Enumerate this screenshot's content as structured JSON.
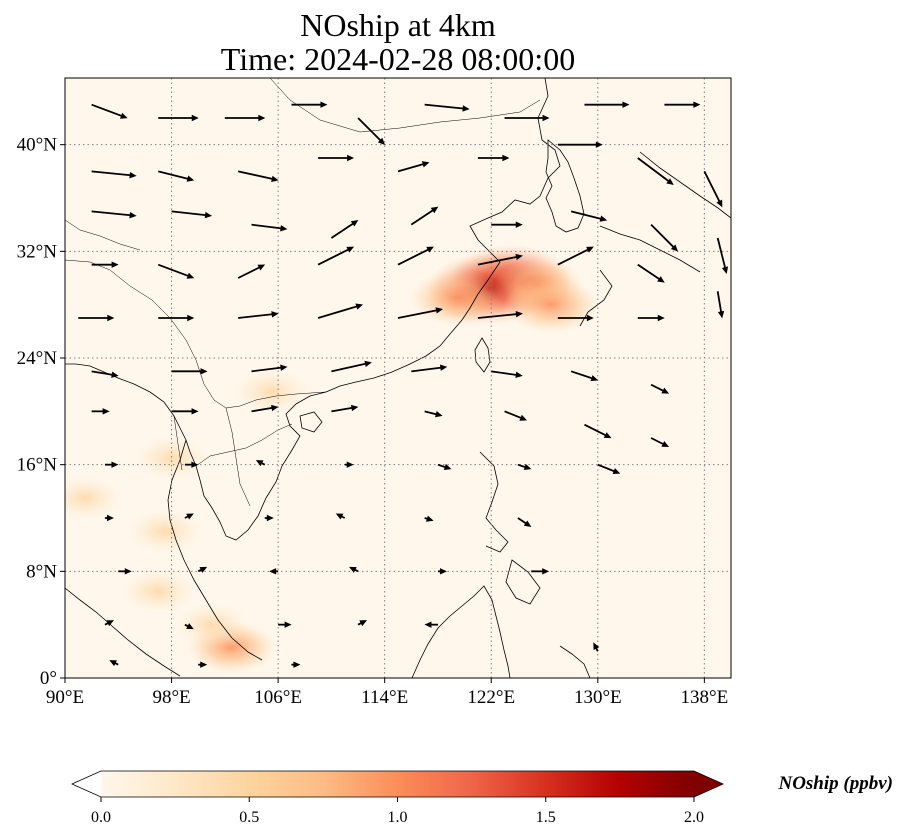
{
  "title_line1": "NOship at 4km",
  "title_line2": "Time: 2024-02-28 08:00:00",
  "map": {
    "projection": "PlateCarree",
    "lon_range": [
      90,
      140
    ],
    "lat_range": [
      0,
      45
    ],
    "lon_ticks": [
      {
        "value": 90,
        "label": "90°E"
      },
      {
        "value": 98,
        "label": "98°E"
      },
      {
        "value": 106,
        "label": "106°E"
      },
      {
        "value": 114,
        "label": "114°E"
      },
      {
        "value": 122,
        "label": "122°E"
      },
      {
        "value": 130,
        "label": "130°E"
      },
      {
        "value": 138,
        "label": "138°E"
      }
    ],
    "lat_ticks": [
      {
        "value": 0,
        "label": "0°"
      },
      {
        "value": 8,
        "label": "8°N"
      },
      {
        "value": 16,
        "label": "16°N"
      },
      {
        "value": 24,
        "label": "24°N"
      },
      {
        "value": 32,
        "label": "32°N"
      },
      {
        "value": 40,
        "label": "40°N"
      }
    ],
    "gridlines": "dotted gray",
    "background_color": "#fff7ec",
    "coastline_color": "#000000"
  },
  "colorbar": {
    "cmap": "OrRd",
    "vmin": 0.0,
    "vmax": 2.0,
    "extend": "both",
    "ticks": [
      "0.0",
      "0.5",
      "1.0",
      "1.5",
      "2.0"
    ],
    "label": "NOship (ppbv)",
    "colors": [
      "#fff7ec",
      "#fee8c8",
      "#fdd49e",
      "#fdbb84",
      "#fc8d59",
      "#ef6548",
      "#d7301f",
      "#b30000",
      "#7f0000"
    ],
    "under_color": "#ffffff",
    "over_color": "#7f0000"
  },
  "chart_data": {
    "type": "heatmap",
    "variable": "NOship",
    "units": "ppbv",
    "concentration_hotspots": [
      {
        "lon": 123.5,
        "lat": 29.8,
        "value": 1.7
      },
      {
        "lon": 121.8,
        "lat": 29.2,
        "value": 1.3
      },
      {
        "lon": 125.5,
        "lat": 29.5,
        "value": 1.0
      },
      {
        "lon": 119.5,
        "lat": 28.5,
        "value": 0.5
      },
      {
        "lon": 126.5,
        "lat": 28.0,
        "value": 0.5
      },
      {
        "lon": 102.5,
        "lat": 2.3,
        "value": 1.0
      },
      {
        "lon": 101.0,
        "lat": 4.0,
        "value": 0.4
      },
      {
        "lon": 97.0,
        "lat": 6.5,
        "value": 0.3
      },
      {
        "lon": 98.0,
        "lat": 16.5,
        "value": 0.35
      },
      {
        "lon": 91.5,
        "lat": 13.5,
        "value": 0.2
      },
      {
        "lon": 97.5,
        "lat": 11.0,
        "value": 0.2
      },
      {
        "lon": 105.5,
        "lat": 21.5,
        "value": 0.2
      }
    ],
    "wind_vectors": [
      {
        "lon": 92,
        "lat": 43,
        "u": 4,
        "v": -1.5
      },
      {
        "lon": 97,
        "lat": 42,
        "u": 4.5,
        "v": 0
      },
      {
        "lon": 102,
        "lat": 42,
        "u": 4.5,
        "v": 0
      },
      {
        "lon": 107,
        "lat": 43,
        "u": 4,
        "v": 0
      },
      {
        "lon": 112,
        "lat": 42,
        "u": 3,
        "v": -3
      },
      {
        "lon": 117,
        "lat": 43,
        "u": 5,
        "v": -0.5
      },
      {
        "lon": 123,
        "lat": 42,
        "u": 5,
        "v": 0
      },
      {
        "lon": 129,
        "lat": 43,
        "u": 5,
        "v": 0
      },
      {
        "lon": 135,
        "lat": 43,
        "u": 4,
        "v": 0
      },
      {
        "lon": 92,
        "lat": 38,
        "u": 5,
        "v": -0.5
      },
      {
        "lon": 97,
        "lat": 38,
        "u": 4,
        "v": -1
      },
      {
        "lon": 103,
        "lat": 38,
        "u": 4.5,
        "v": -1
      },
      {
        "lon": 109,
        "lat": 39,
        "u": 4,
        "v": 0
      },
      {
        "lon": 115,
        "lat": 38,
        "u": 3.5,
        "v": 1
      },
      {
        "lon": 121,
        "lat": 39,
        "u": 3.5,
        "v": 0
      },
      {
        "lon": 127,
        "lat": 40,
        "u": 5,
        "v": 0
      },
      {
        "lon": 133,
        "lat": 39,
        "u": 4,
        "v": -3
      },
      {
        "lon": 138,
        "lat": 38,
        "u": 2,
        "v": -4
      },
      {
        "lon": 92,
        "lat": 35,
        "u": 5,
        "v": -0.5
      },
      {
        "lon": 98,
        "lat": 35,
        "u": 4.5,
        "v": -0.5
      },
      {
        "lon": 104,
        "lat": 34,
        "u": 4,
        "v": -0.5
      },
      {
        "lon": 110,
        "lat": 33,
        "u": 3,
        "v": 2
      },
      {
        "lon": 116,
        "lat": 34,
        "u": 3,
        "v": 2
      },
      {
        "lon": 122,
        "lat": 34,
        "u": 3.5,
        "v": 0
      },
      {
        "lon": 128,
        "lat": 35,
        "u": 4,
        "v": -1
      },
      {
        "lon": 134,
        "lat": 34,
        "u": 3,
        "v": -3
      },
      {
        "lon": 139,
        "lat": 33,
        "u": 1,
        "v": -4
      },
      {
        "lon": 92,
        "lat": 31,
        "u": 3,
        "v": 0
      },
      {
        "lon": 97,
        "lat": 31,
        "u": 4,
        "v": -1.5
      },
      {
        "lon": 103,
        "lat": 30,
        "u": 3,
        "v": 1.5
      },
      {
        "lon": 109,
        "lat": 31,
        "u": 4,
        "v": 2
      },
      {
        "lon": 115,
        "lat": 31,
        "u": 4,
        "v": 2
      },
      {
        "lon": 121,
        "lat": 31,
        "u": 5,
        "v": 1
      },
      {
        "lon": 127,
        "lat": 31,
        "u": 4,
        "v": 2
      },
      {
        "lon": 133,
        "lat": 31,
        "u": 3,
        "v": -2
      },
      {
        "lon": 139,
        "lat": 29,
        "u": 0.5,
        "v": -3
      },
      {
        "lon": 91,
        "lat": 27,
        "u": 4,
        "v": 0
      },
      {
        "lon": 97,
        "lat": 27,
        "u": 4,
        "v": 0
      },
      {
        "lon": 103,
        "lat": 27,
        "u": 4.5,
        "v": 0.5
      },
      {
        "lon": 109,
        "lat": 27,
        "u": 5,
        "v": 1.5
      },
      {
        "lon": 115,
        "lat": 27,
        "u": 5,
        "v": 1
      },
      {
        "lon": 121,
        "lat": 27,
        "u": 5,
        "v": 0.5
      },
      {
        "lon": 127,
        "lat": 27,
        "u": 4,
        "v": 0
      },
      {
        "lon": 133,
        "lat": 27,
        "u": 3,
        "v": 0
      },
      {
        "lon": 92,
        "lat": 23,
        "u": 3,
        "v": -0.5
      },
      {
        "lon": 98,
        "lat": 23,
        "u": 4,
        "v": 0
      },
      {
        "lon": 104,
        "lat": 23,
        "u": 4,
        "v": 0.5
      },
      {
        "lon": 110,
        "lat": 23,
        "u": 4.5,
        "v": 1
      },
      {
        "lon": 116,
        "lat": 23,
        "u": 4,
        "v": 0.5
      },
      {
        "lon": 122,
        "lat": 23,
        "u": 3.5,
        "v": -0.5
      },
      {
        "lon": 128,
        "lat": 23,
        "u": 3,
        "v": -1
      },
      {
        "lon": 134,
        "lat": 22,
        "u": 2,
        "v": -1
      },
      {
        "lon": 92,
        "lat": 20,
        "u": 2,
        "v": 0
      },
      {
        "lon": 98,
        "lat": 20,
        "u": 3,
        "v": 0
      },
      {
        "lon": 104,
        "lat": 20,
        "u": 3,
        "v": 0.5
      },
      {
        "lon": 110,
        "lat": 20,
        "u": 3,
        "v": 0.5
      },
      {
        "lon": 117,
        "lat": 20,
        "u": 2,
        "v": -0.5
      },
      {
        "lon": 123,
        "lat": 20,
        "u": 2.5,
        "v": -1
      },
      {
        "lon": 129,
        "lat": 19,
        "u": 3,
        "v": -1.5
      },
      {
        "lon": 134,
        "lat": 18,
        "u": 2,
        "v": -1
      },
      {
        "lon": 93,
        "lat": 16,
        "u": 1.5,
        "v": 0
      },
      {
        "lon": 99,
        "lat": 16,
        "u": 1.5,
        "v": 0
      },
      {
        "lon": 105,
        "lat": 16,
        "u": -1,
        "v": 0.5
      },
      {
        "lon": 111,
        "lat": 16,
        "u": 1,
        "v": 0
      },
      {
        "lon": 118,
        "lat": 16,
        "u": 1.5,
        "v": -0.5
      },
      {
        "lon": 124,
        "lat": 16,
        "u": 1.5,
        "v": -0.5
      },
      {
        "lon": 130,
        "lat": 16,
        "u": 2.5,
        "v": -1
      },
      {
        "lon": 93,
        "lat": 12,
        "u": 1,
        "v": 0
      },
      {
        "lon": 99,
        "lat": 12,
        "u": 1,
        "v": 0.5
      },
      {
        "lon": 105,
        "lat": 12,
        "u": 1,
        "v": 0
      },
      {
        "lon": 111,
        "lat": 12,
        "u": -1,
        "v": 0.5
      },
      {
        "lon": 117,
        "lat": 12,
        "u": 1,
        "v": -0.3
      },
      {
        "lon": 124,
        "lat": 12,
        "u": 1.5,
        "v": -1
      },
      {
        "lon": 94,
        "lat": 8,
        "u": 1.5,
        "v": 0
      },
      {
        "lon": 100,
        "lat": 8,
        "u": 1,
        "v": 0.5
      },
      {
        "lon": 106,
        "lat": 8,
        "u": -1,
        "v": 0
      },
      {
        "lon": 112,
        "lat": 8,
        "u": -1,
        "v": 0.5
      },
      {
        "lon": 118,
        "lat": 8,
        "u": 1,
        "v": 0
      },
      {
        "lon": 125,
        "lat": 8,
        "u": 2,
        "v": 0
      },
      {
        "lon": 93,
        "lat": 4,
        "u": 1,
        "v": 0.5
      },
      {
        "lon": 99,
        "lat": 4,
        "u": 1,
        "v": -0.5
      },
      {
        "lon": 106,
        "lat": 4,
        "u": 1.5,
        "v": 0
      },
      {
        "lon": 112,
        "lat": 4,
        "u": 1,
        "v": 0.5
      },
      {
        "lon": 118,
        "lat": 4,
        "u": -1.5,
        "v": 0
      },
      {
        "lon": 94,
        "lat": 1,
        "u": -1,
        "v": 0.5
      },
      {
        "lon": 100,
        "lat": 1,
        "u": 1,
        "v": 0
      },
      {
        "lon": 107,
        "lat": 1,
        "u": 1,
        "v": 0
      },
      {
        "lon": 130,
        "lat": 2,
        "u": -0.5,
        "v": 1
      }
    ]
  }
}
